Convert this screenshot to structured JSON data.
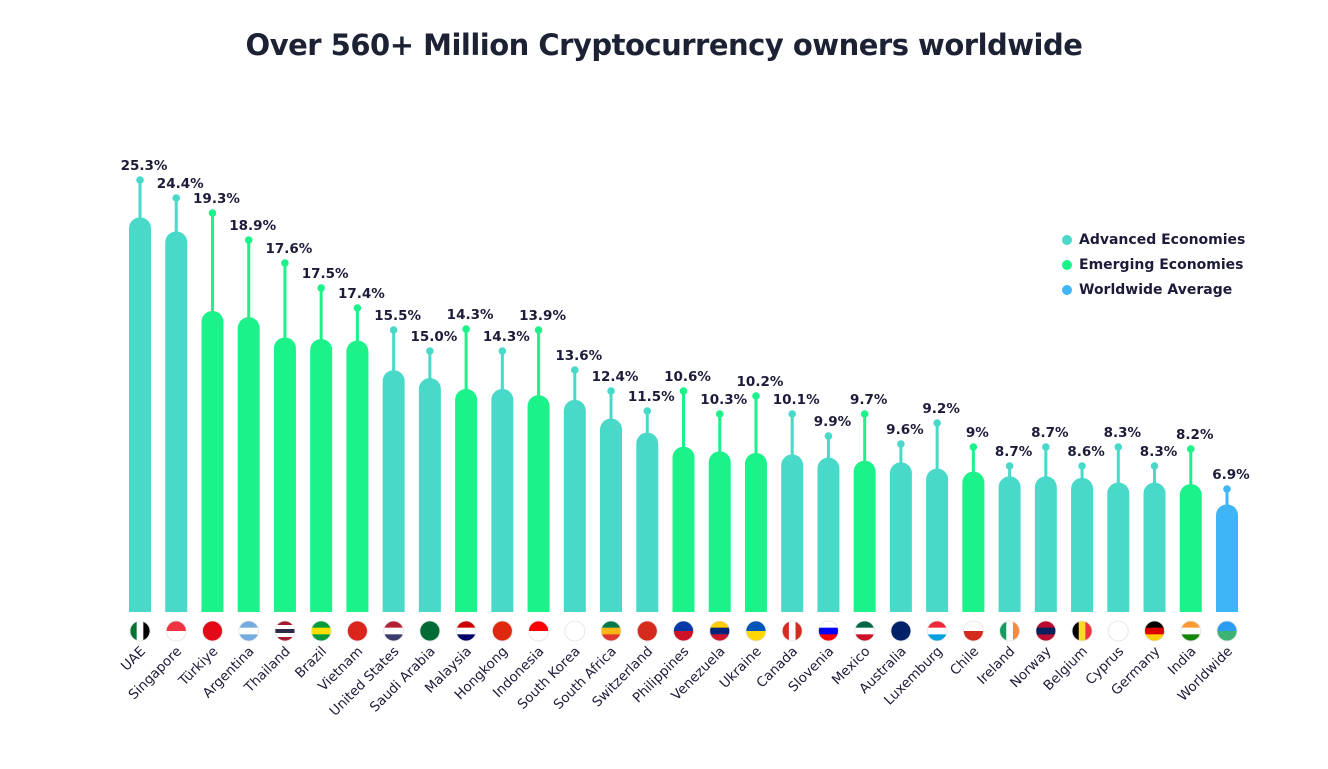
{
  "title": "Over 560+ Million Cryptocurrency owners worldwide",
  "legend": [
    {
      "label": "Advanced Economies",
      "color": "#48d9c8"
    },
    {
      "label": "Emerging Economies",
      "color": "#1cf28a"
    },
    {
      "label": "Worldwide Average",
      "color": "#3db5f7"
    }
  ],
  "chart_data": {
    "type": "bar",
    "title": "Over 560+ Million Cryptocurrency owners worldwide",
    "legend_position": "right",
    "grid": false,
    "categories": [
      "UAE",
      "Singapore",
      "Türkiye",
      "Argentina",
      "Thailand",
      "Brazil",
      "Vietnam",
      "United States",
      "Saudi Arabia",
      "Malaysia",
      "Hongkong",
      "Indonesia",
      "South Korea",
      "South Africa",
      "Switzerland",
      "Philippines",
      "Venezuela",
      "Ukraine",
      "Canada",
      "Slovenia",
      "Mexico",
      "Australia",
      "Luxemburg",
      "Chile",
      "Ireland",
      "Norway",
      "Belgium",
      "Cyprus",
      "Germany",
      "India",
      "Worldwide"
    ],
    "values": [
      25.3,
      24.4,
      19.3,
      18.9,
      17.6,
      17.5,
      17.4,
      15.5,
      15.0,
      14.3,
      14.3,
      13.9,
      13.6,
      12.4,
      11.5,
      10.6,
      10.3,
      10.2,
      10.1,
      9.9,
      9.7,
      9.6,
      9.2,
      9,
      8.7,
      8.7,
      8.6,
      8.3,
      8.3,
      8.2,
      6.9
    ],
    "labels": [
      "25.3%",
      "24.4%",
      "19.3%",
      "18.9%",
      "17.6%",
      "17.5%",
      "17.4%",
      "15.5%",
      "15.0%",
      "14.3%",
      "14.3%",
      "13.9%",
      "13.6%",
      "12.4%",
      "11.5%",
      "10.6%",
      "10.3%",
      "10.2%",
      "10.1%",
      "9.9%",
      "9.7%",
      "9.6%",
      "9.2%",
      "9%",
      "8.7%",
      "8.7%",
      "8.6%",
      "8.3%",
      "8.3%",
      "8.2%",
      "6.9%"
    ],
    "groups": [
      "Advanced Economies",
      "Advanced Economies",
      "Emerging Economies",
      "Emerging Economies",
      "Emerging Economies",
      "Emerging Economies",
      "Emerging Economies",
      "Advanced Economies",
      "Advanced Economies",
      "Emerging Economies",
      "Advanced Economies",
      "Emerging Economies",
      "Advanced Economies",
      "Advanced Economies",
      "Advanced Economies",
      "Emerging Economies",
      "Emerging Economies",
      "Emerging Economies",
      "Advanced Economies",
      "Advanced Economies",
      "Emerging Economies",
      "Advanced Economies",
      "Advanced Economies",
      "Emerging Economies",
      "Advanced Economies",
      "Advanced Economies",
      "Advanced Economies",
      "Advanced Economies",
      "Advanced Economies",
      "Emerging Economies",
      "Worldwide Average"
    ],
    "flag_icons": [
      "uae",
      "singapore",
      "turkiye",
      "argentina",
      "thailand",
      "brazil",
      "vietnam",
      "united-states",
      "saudi-arabia",
      "malaysia",
      "hongkong",
      "indonesia",
      "south-korea",
      "south-africa",
      "switzerland",
      "philippines",
      "venezuela",
      "ukraine",
      "canada",
      "slovenia",
      "mexico",
      "australia",
      "luxemburg",
      "chile",
      "ireland",
      "norway",
      "belgium",
      "cyprus",
      "germany",
      "india",
      "worldwide"
    ]
  }
}
